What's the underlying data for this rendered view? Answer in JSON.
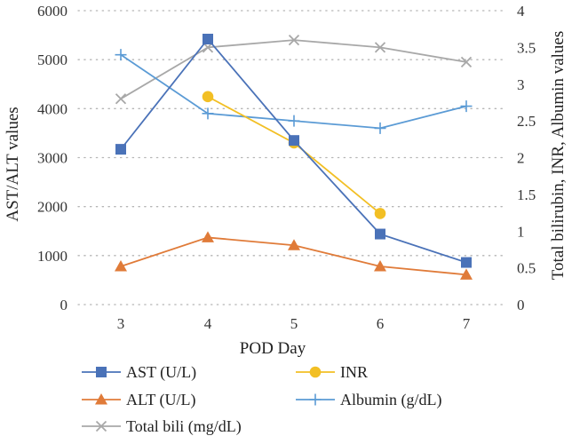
{
  "chart_data": {
    "type": "line",
    "title": "",
    "xlabel": "POD Day",
    "ylabel_left": "AST/ALT values",
    "ylabel_right": "Total bilirubin, INR, Albumin values",
    "x": [
      "3",
      "4",
      "5",
      "6",
      "7"
    ],
    "ylim_left": [
      0,
      6000
    ],
    "ylim_right": [
      0,
      4
    ],
    "yticks_left": [
      "0",
      "1000",
      "2000",
      "3000",
      "4000",
      "5000",
      "6000"
    ],
    "yticks_right": [
      "0",
      "0.5",
      "1",
      "1.5",
      "2",
      "2.5",
      "3",
      "3.5",
      "4"
    ],
    "grid": "dotted",
    "series": [
      {
        "name": "AST (U/L)",
        "axis": "left",
        "color": "#4a72b8",
        "marker": "square",
        "values": [
          3170,
          5420,
          3350,
          1440,
          860
        ]
      },
      {
        "name": "ALT (U/L)",
        "axis": "left",
        "color": "#e07b39",
        "marker": "triangle",
        "values": [
          780,
          1370,
          1210,
          780,
          610
        ]
      },
      {
        "name": "Total bili (mg/dL)",
        "axis": "right",
        "color": "#a8a8a8",
        "marker": "x",
        "values": [
          2.8,
          3.5,
          3.6,
          3.5,
          3.3
        ]
      },
      {
        "name": "INR",
        "axis": "right",
        "color": "#f2bf24",
        "marker": "circle",
        "values": [
          null,
          2.83,
          2.2,
          1.24,
          null
        ]
      },
      {
        "name": "Albumin (g/dL)",
        "axis": "right",
        "color": "#5b9bd5",
        "marker": "plus",
        "values": [
          3.4,
          2.6,
          2.5,
          2.4,
          2.7
        ]
      }
    ],
    "legend_position": "bottom"
  }
}
